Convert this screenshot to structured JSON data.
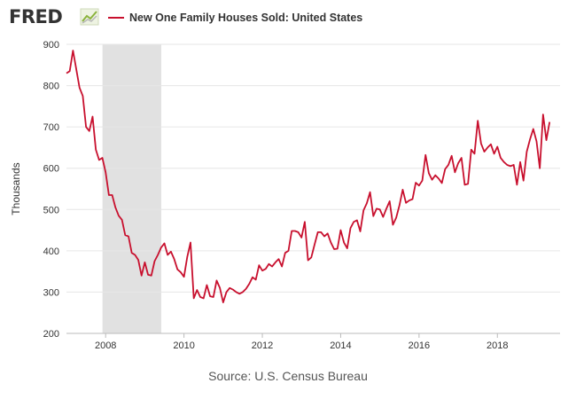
{
  "header": {
    "logo_text": "FRED",
    "logo_icon": "fred-chart-icon",
    "series_label": "New One Family Houses Sold: United States"
  },
  "source_text": "Source: U.S. Census Bureau",
  "colors": {
    "series": "#c8102e",
    "recession_band": "#e1e1e1",
    "grid": "#e6e6e6",
    "logo_green": "#8bb33d"
  },
  "chart_data": {
    "type": "line",
    "title": "",
    "xlabel": "",
    "ylabel": "Thousands",
    "ylim": [
      200,
      900
    ],
    "yticks": [
      200,
      300,
      400,
      500,
      600,
      700,
      800,
      900
    ],
    "xlim": [
      2007.0,
      2019.6
    ],
    "xticks": [
      2008,
      2010,
      2012,
      2014,
      2016,
      2018
    ],
    "grid": true,
    "legend_position": "top",
    "recession": {
      "start": 2007.92,
      "end": 2009.42
    },
    "series": [
      {
        "name": "New One Family Houses Sold: United States",
        "x_start": 2007.0,
        "x_step": 0.08333333,
        "values": [
          830,
          835,
          885,
          840,
          795,
          775,
          700,
          690,
          725,
          645,
          620,
          625,
          590,
          535,
          535,
          505,
          485,
          475,
          438,
          435,
          395,
          390,
          378,
          340,
          372,
          342,
          340,
          375,
          390,
          408,
          418,
          390,
          398,
          380,
          355,
          348,
          337,
          385,
          420,
          285,
          305,
          288,
          285,
          317,
          290,
          288,
          328,
          310,
          275,
          300,
          310,
          306,
          300,
          296,
          300,
          308,
          320,
          336,
          330,
          365,
          352,
          356,
          368,
          362,
          372,
          380,
          362,
          395,
          400,
          448,
          448,
          445,
          432,
          470,
          377,
          384,
          415,
          445,
          445,
          435,
          442,
          420,
          404,
          405,
          450,
          420,
          406,
          455,
          470,
          474,
          447,
          498,
          515,
          542,
          484,
          502,
          500,
          482,
          502,
          520,
          463,
          480,
          510,
          548,
          516,
          522,
          525,
          565,
          558,
          570,
          632,
          588,
          572,
          583,
          575,
          564,
          598,
          608,
          630,
          590,
          612,
          625,
          560,
          562,
          645,
          635,
          715,
          660,
          640,
          650,
          658,
          635,
          652,
          625,
          615,
          608,
          605,
          608,
          560,
          615,
          570,
          640,
          670,
          695,
          665,
          600,
          730,
          668,
          712
        ]
      }
    ]
  }
}
